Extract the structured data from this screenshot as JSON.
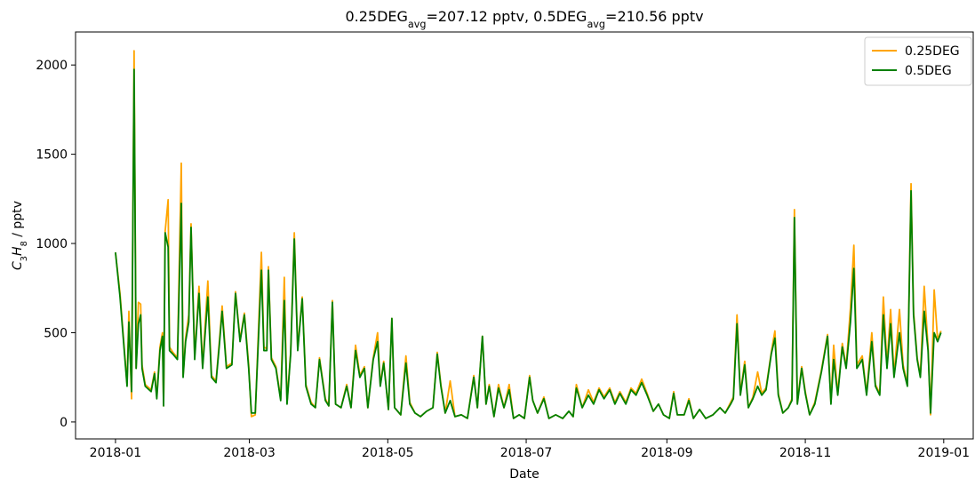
{
  "chart_data": {
    "type": "line",
    "title": [
      {
        "text": "0.25DEG"
      },
      {
        "text": "avg",
        "sub": true
      },
      {
        "text": "=207.12 pptv, 0.5DEG"
      },
      {
        "text": "avg",
        "sub": true
      },
      {
        "text": "=210.56 pptv"
      }
    ],
    "xlabel": "Date",
    "ylabel": [
      {
        "text": "C",
        "italic": true
      },
      {
        "text": "3",
        "sub": true
      },
      {
        "text": "H",
        "italic": true
      },
      {
        "text": "8",
        "sub": true
      },
      {
        "text": " / pptv"
      }
    ],
    "xlim": [
      -17.6,
      378
    ],
    "ylim": [
      -95,
      2185
    ],
    "xticks": [
      {
        "value": 0,
        "label": "2018-01"
      },
      {
        "value": 59,
        "label": "2018-03"
      },
      {
        "value": 120,
        "label": "2018-05"
      },
      {
        "value": 181,
        "label": "2018-07"
      },
      {
        "value": 243,
        "label": "2018-09"
      },
      {
        "value": 304,
        "label": "2018-11"
      },
      {
        "value": 365,
        "label": "2019-01"
      }
    ],
    "yticks": [
      0,
      500,
      1000,
      1500,
      2000
    ],
    "legend": "upper right",
    "x": [
      0,
      2.0,
      5.1,
      5.9,
      7.1,
      8.2,
      9.1,
      10.1,
      11.1,
      11.7,
      13.1,
      15.7,
      17.2,
      18.2,
      19.6,
      20.7,
      21.2,
      21.9,
      23.2,
      23.8,
      25.3,
      27.3,
      29.0,
      29.8,
      30.9,
      32.3,
      33.3,
      34.9,
      36.8,
      38.4,
      40.7,
      42.3,
      44.3,
      45.9,
      47.0,
      48.9,
      51.3,
      52.9,
      54.9,
      56.8,
      58.7,
      59.9,
      61.6,
      64.3,
      65.4,
      66.7,
      67.4,
      68.7,
      70.7,
      72.8,
      74.4,
      75.6,
      77.2,
      78.8,
      80.3,
      82.3,
      83.9,
      86.2,
      88.1,
      89.9,
      92.5,
      94.0,
      95.6,
      97.0,
      99.4,
      101.9,
      103.8,
      105.8,
      107.7,
      109.7,
      111.2,
      113.6,
      115.5,
      116.7,
      118.2,
      120.3,
      121.8,
      123.0,
      125.7,
      128.0,
      129.7,
      132.0,
      134.4,
      137.1,
      139.9,
      141.8,
      143.4,
      145.3,
      147.5,
      149.6,
      152.4,
      155.1,
      157.9,
      159.5,
      161.7,
      163.3,
      164.7,
      166.8,
      168.8,
      171.2,
      173.5,
      175.4,
      177.9,
      180.2,
      182.5,
      183.9,
      186.0,
      188.8,
      191.0,
      194.0,
      197.1,
      199.8,
      201.7,
      203.1,
      205.7,
      208.4,
      210.7,
      213.1,
      215.3,
      217.8,
      220.1,
      222.3,
      224.9,
      227.2,
      229.4,
      231.9,
      234.3,
      237.0,
      239.3,
      241.5,
      244.1,
      246.0,
      247.6,
      250.6,
      252.7,
      254.7,
      257.4,
      260.1,
      263.3,
      266.4,
      268.7,
      271.1,
      272.3,
      273.9,
      275.4,
      277.3,
      278.9,
      280.9,
      283.0,
      284.8,
      286.7,
      289.0,
      290.6,
      292.1,
      294.1,
      296.5,
      298.1,
      299.2,
      300.5,
      302.4,
      304.0,
      305.9,
      308.2,
      311.1,
      313.8,
      315.3,
      316.5,
      318.3,
      320.3,
      322.0,
      323.9,
      325.4,
      326.7,
      329.1,
      331.0,
      333.3,
      334.9,
      336.8,
      338.4,
      340.0,
      341.6,
      343.1,
      345.5,
      347.1,
      349.0,
      350.6,
      351.7,
      353.3,
      354.7,
      356.4,
      358.1,
      359.2,
      360.8,
      362.3,
      363.8
    ],
    "series": [
      {
        "name": "0.25DEG",
        "color": "#ffa500",
        "values": [
          950,
          720,
          210,
          620,
          130,
          2080,
          300,
          670,
          660,
          320,
          210,
          180,
          280,
          140,
          420,
          500,
          90,
          1070,
          1245,
          420,
          390,
          360,
          1450,
          260,
          470,
          600,
          1110,
          370,
          760,
          310,
          790,
          260,
          230,
          470,
          650,
          310,
          330,
          730,
          460,
          610,
          320,
          30,
          40,
          950,
          420,
          410,
          870,
          360,
          310,
          130,
          810,
          110,
          390,
          1060,
          410,
          700,
          210,
          110,
          80,
          360,
          130,
          90,
          680,
          100,
          80,
          210,
          80,
          430,
          260,
          310,
          80,
          360,
          500,
          210,
          340,
          70,
          580,
          80,
          40,
          370,
          110,
          50,
          30,
          60,
          80,
          390,
          210,
          50,
          230,
          30,
          40,
          20,
          260,
          80,
          480,
          100,
          210,
          30,
          210,
          80,
          210,
          20,
          40,
          20,
          260,
          120,
          50,
          140,
          20,
          40,
          20,
          60,
          30,
          210,
          80,
          180,
          110,
          190,
          140,
          190,
          110,
          170,
          110,
          190,
          160,
          240,
          160,
          60,
          100,
          40,
          20,
          170,
          40,
          40,
          130,
          20,
          70,
          20,
          40,
          80,
          50,
          110,
          140,
          600,
          160,
          340,
          80,
          140,
          280,
          160,
          190,
          390,
          510,
          160,
          50,
          80,
          130,
          1190,
          110,
          310,
          170,
          40,
          110,
          290,
          490,
          110,
          430,
          160,
          440,
          310,
          640,
          990,
          320,
          370,
          160,
          500,
          210,
          160,
          700,
          320,
          630,
          260,
          630,
          320,
          210,
          1335,
          620,
          360,
          260,
          760,
          420,
          40,
          740,
          460,
          510
        ]
      },
      {
        "name": "0.5DEG",
        "color": "#008000",
        "values": [
          950,
          700,
          200,
          560,
          170,
          1975,
          300,
          550,
          600,
          300,
          200,
          170,
          270,
          130,
          400,
          480,
          90,
          1060,
          980,
          400,
          380,
          350,
          1225,
          250,
          450,
          560,
          1090,
          350,
          720,
          300,
          700,
          250,
          220,
          450,
          620,
          300,
          320,
          720,
          450,
          600,
          300,
          50,
          50,
          850,
          400,
          400,
          850,
          350,
          300,
          120,
          680,
          100,
          380,
          1025,
          400,
          690,
          200,
          100,
          80,
          350,
          120,
          90,
          670,
          100,
          80,
          200,
          80,
          400,
          250,
          300,
          80,
          350,
          450,
          200,
          330,
          70,
          580,
          80,
          40,
          330,
          100,
          50,
          30,
          60,
          80,
          380,
          200,
          50,
          120,
          30,
          40,
          20,
          250,
          80,
          480,
          100,
          200,
          30,
          190,
          80,
          180,
          20,
          40,
          20,
          250,
          120,
          50,
          130,
          20,
          40,
          20,
          60,
          30,
          190,
          80,
          150,
          100,
          180,
          130,
          180,
          100,
          160,
          100,
          180,
          150,
          220,
          150,
          60,
          100,
          40,
          20,
          160,
          40,
          40,
          120,
          20,
          70,
          20,
          40,
          80,
          50,
          100,
          130,
          550,
          150,
          320,
          80,
          130,
          200,
          150,
          180,
          380,
          470,
          150,
          50,
          80,
          120,
          1145,
          100,
          300,
          160,
          40,
          100,
          280,
          480,
          100,
          350,
          150,
          420,
          300,
          560,
          860,
          300,
          350,
          150,
          450,
          200,
          150,
          600,
          300,
          550,
          250,
          500,
          300,
          200,
          1295,
          600,
          350,
          250,
          620,
          400,
          50,
          500,
          450,
          500
        ]
      }
    ]
  }
}
